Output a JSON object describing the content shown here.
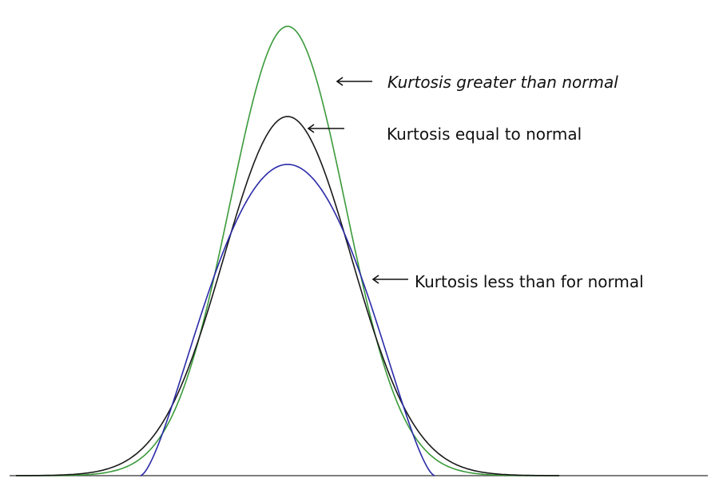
{
  "labels": {
    "greater": "Kurtosis greater than normal",
    "equal": "Kurtosis equal to normal",
    "less": "Kurtosis less than for normal"
  },
  "colors": {
    "leptokurtic": "#3a9a3a",
    "mesokurtic": "#1a1a1a",
    "platykurtic": "#2a2aa8",
    "baseline": "#555555",
    "arrow": "#111111"
  }
}
